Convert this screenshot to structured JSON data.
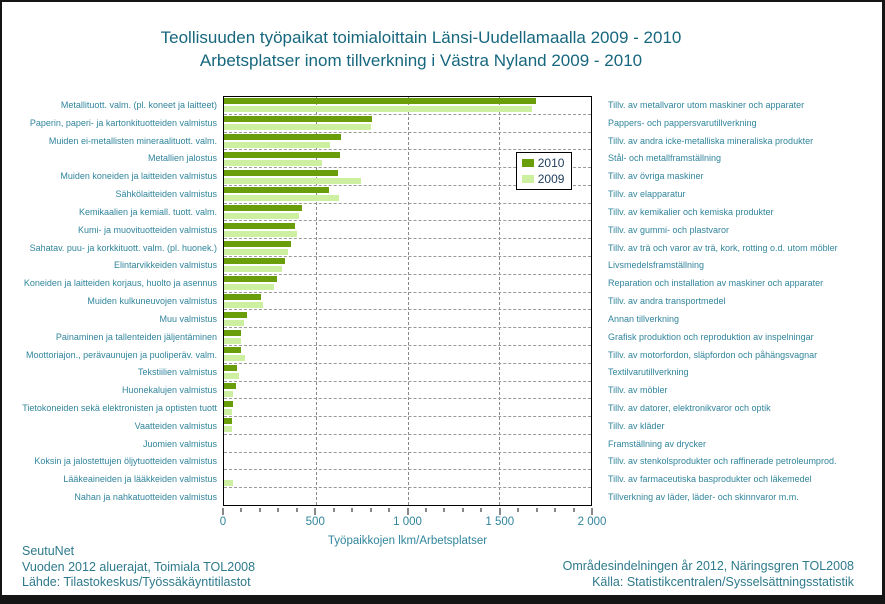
{
  "title": {
    "line1": "Teollisuuden työpaikat toimialoittain Länsi-Uudellamaalla 2009 - 2010",
    "line2": "Arbetsplatser inom tillverkning i Västra Nyland 2009 - 2010"
  },
  "legend": {
    "position": "inside-right",
    "items": [
      {
        "label": "2010",
        "color": "#699E0A"
      },
      {
        "label": "2009",
        "color": "#CDF0A0"
      }
    ]
  },
  "chart_data": {
    "type": "bar",
    "orientation": "horizontal",
    "title": "Teollisuuden työpaikat toimialoittain Länsi-Uudellamaalla 2009 - 2010 / Arbetsplatser inom tillverkning i Västra Nyland 2009 - 2010",
    "xlabel": "Työpaikkojen lkm/Arbetsplatser",
    "xlim": [
      0,
      2000
    ],
    "major_tick_step": 500,
    "minor_tick_step": 100,
    "grid": "dashed",
    "xticks": [
      {
        "value": 0,
        "label": "0"
      },
      {
        "value": 500,
        "label": "500"
      },
      {
        "value": 1000,
        "label": "1 000"
      },
      {
        "value": 1500,
        "label": "1 500"
      },
      {
        "value": 2000,
        "label": "2 000"
      }
    ],
    "categories_fi": [
      "Metallituott. valm. (pl. koneet ja laitteet)",
      "Paperin, paperi- ja kartonkituotteiden valmistus",
      "Muiden ei-metallisten mineraalituott. valm.",
      "Metallien jalostus",
      "Muiden koneiden ja laitteiden valmistus",
      "Sähkölaitteiden valmistus",
      "Kemikaalien ja kemiall. tuott. valm.",
      "Kumi- ja muovituotteiden valmistus",
      "Sahatav. puu- ja korkkituott. valm. (pl. huonek.)",
      "Elintarvikkeiden valmistus",
      "Koneiden ja laitteiden korjaus, huolto ja asennus",
      "Muiden kulkuneuvojen valmistus",
      "Muu valmistus",
      "Painaminen ja tallenteiden jäljentäminen",
      "Moottoriajon., perävaunujen ja puoliperäv. valm.",
      "Tekstiilien valmistus",
      "Huonekalujen valmistus",
      "Tietokoneiden sekä elektronisten ja optisten tuott",
      "Vaatteiden valmistus",
      "Juomien valmistus",
      "Koksin ja jalostettujen öljytuotteiden valmistus",
      "Lääkeaineiden ja lääkkeiden valmistus",
      "Nahan ja nahkatuotteiden valmistus"
    ],
    "categories_sv": [
      "Tillv. av metallvaror utom maskiner och apparater",
      "Pappers- och pappersvarutillverkning",
      "Tillv. av andra icke-metalliska mineraliska produkter",
      "Stål- och metallframställning",
      "Tillv. av övriga maskiner",
      "Tillv. av elapparatur",
      "Tillv. av kemikalier och kemiska produkter",
      "Tillv. av gummi- och plastvaror",
      "Tillv. av trä och varor av trä, kork, rotting o.d. utom möbler",
      "Livsmedelsframställning",
      "Reparation och installation av maskiner och apparater",
      "Tillv. av andra transportmedel",
      "Annan tillverkning",
      "Grafisk produktion och reproduktion av inspelningar",
      "Tillv. av motorfordon, släpfordon och påhängsvagnar",
      "Textilvarutillverkning",
      "Tillv. av möbler",
      "Tillv. av datorer, elektronikvaror och optik",
      "Tillv. av kläder",
      "Framställning av drycker",
      "Tillv. av stenkolsprodukter och raffinerade petroleumprod.",
      "Tillv. av farmaceutiska basprodukter och läkemedel",
      "Tillverkning av läder, läder- och skinnvaror m.m."
    ],
    "series": [
      {
        "name": "2010",
        "color": "#699E0A",
        "values": [
          1700,
          805,
          635,
          630,
          620,
          570,
          425,
          385,
          365,
          330,
          290,
          200,
          125,
          90,
          95,
          70,
          65,
          50,
          45,
          0,
          0,
          0,
          0
        ]
      },
      {
        "name": "2009",
        "color": "#CDF0A0",
        "values": [
          1680,
          800,
          575,
          535,
          745,
          625,
          410,
          400,
          350,
          315,
          275,
          210,
          110,
          95,
          115,
          80,
          50,
          45,
          45,
          0,
          0,
          50,
          0
        ]
      }
    ]
  },
  "footer": {
    "left": {
      "line1": "SeutuNet",
      "line2": "Vuoden 2012 aluerajat, Toimiala TOL2008",
      "line3": "Lähde: Tilastokeskus/Työssäkäyntitilastot"
    },
    "right": {
      "line1": "Områdesindelningen år 2012,  Näringsgren TOL2008",
      "line2": "Källa: Statistikcentralen/Sysselsättningsstatistik"
    }
  },
  "colors": {
    "title_text": "#17677E",
    "label_text": "#31859C",
    "legend_text": "#1F3B5C",
    "gridline": "#9A9A9A",
    "frame": "#151515"
  }
}
